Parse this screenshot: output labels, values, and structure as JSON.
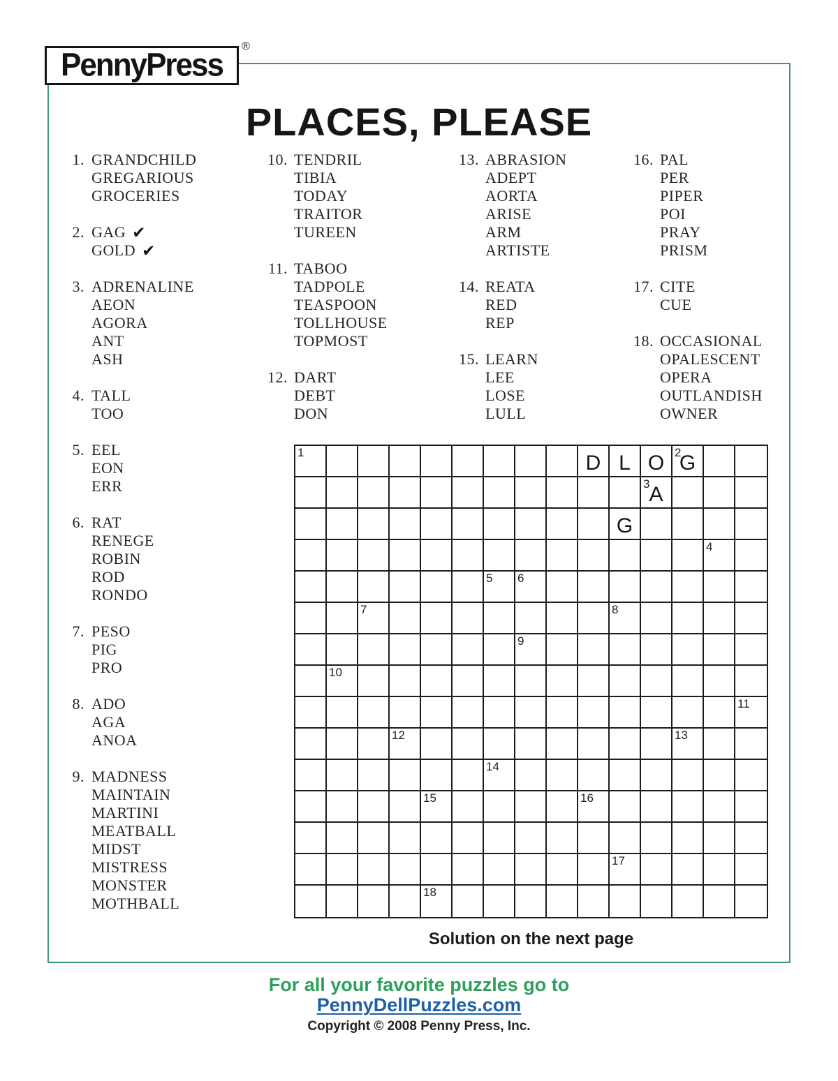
{
  "logo": {
    "text": "PennyPress",
    "registered": "®"
  },
  "title": "PLACES, PLEASE",
  "icons": {
    "check": "✔"
  },
  "word_lists": {
    "columns": [
      [
        {
          "num": "1.",
          "words": [
            {
              "t": "GRANDCHILD"
            },
            {
              "t": "GREGARIOUS"
            },
            {
              "t": "GROCERIES"
            }
          ]
        },
        {
          "num": "2.",
          "words": [
            {
              "t": "GAG",
              "check": true
            },
            {
              "t": "GOLD",
              "check": true
            }
          ]
        },
        {
          "num": "3.",
          "words": [
            {
              "t": "ADRENALINE"
            },
            {
              "t": "AEON"
            },
            {
              "t": "AGORA"
            },
            {
              "t": "ANT"
            },
            {
              "t": "ASH"
            }
          ]
        },
        {
          "num": "4.",
          "words": [
            {
              "t": "TALL"
            },
            {
              "t": "TOO"
            }
          ]
        },
        {
          "num": "5.",
          "words": [
            {
              "t": "EEL"
            },
            {
              "t": "EON"
            },
            {
              "t": "ERR"
            }
          ]
        },
        {
          "num": "6.",
          "words": [
            {
              "t": "RAT"
            },
            {
              "t": "RENEGE"
            },
            {
              "t": "ROBIN"
            },
            {
              "t": "ROD"
            },
            {
              "t": "RONDO"
            }
          ]
        },
        {
          "num": "7.",
          "words": [
            {
              "t": "PESO"
            },
            {
              "t": "PIG"
            },
            {
              "t": "PRO"
            }
          ]
        },
        {
          "num": "8.",
          "words": [
            {
              "t": "ADO"
            },
            {
              "t": "AGA"
            },
            {
              "t": "ANOA"
            }
          ]
        },
        {
          "num": "9.",
          "words": [
            {
              "t": "MADNESS"
            },
            {
              "t": "MAINTAIN"
            },
            {
              "t": "MARTINI"
            },
            {
              "t": "MEATBALL"
            },
            {
              "t": "MIDST"
            },
            {
              "t": "MISTRESS"
            },
            {
              "t": "MONSTER"
            },
            {
              "t": "MOTHBALL"
            }
          ]
        }
      ],
      [
        {
          "num": "10.",
          "words": [
            {
              "t": "TENDRIL"
            },
            {
              "t": "TIBIA"
            },
            {
              "t": "TODAY"
            },
            {
              "t": "TRAITOR"
            },
            {
              "t": "TUREEN"
            }
          ]
        },
        {
          "num": "11.",
          "words": [
            {
              "t": "TABOO"
            },
            {
              "t": "TADPOLE"
            },
            {
              "t": "TEASPOON"
            },
            {
              "t": "TOLLHOUSE"
            },
            {
              "t": "TOPMOST"
            }
          ]
        },
        {
          "num": "12.",
          "words": [
            {
              "t": "DART"
            },
            {
              "t": "DEBT"
            },
            {
              "t": "DON"
            }
          ]
        }
      ],
      [
        {
          "num": "13.",
          "words": [
            {
              "t": "ABRASION"
            },
            {
              "t": "ADEPT"
            },
            {
              "t": "AORTA"
            },
            {
              "t": "ARISE"
            },
            {
              "t": "ARM"
            },
            {
              "t": "ARTISTE"
            }
          ]
        },
        {
          "num": "14.",
          "words": [
            {
              "t": "REATA"
            },
            {
              "t": "RED"
            },
            {
              "t": "REP"
            }
          ]
        },
        {
          "num": "15.",
          "words": [
            {
              "t": "LEARN"
            },
            {
              "t": "LEE"
            },
            {
              "t": "LOSE"
            },
            {
              "t": "LULL"
            }
          ]
        }
      ],
      [
        {
          "num": "16.",
          "words": [
            {
              "t": "PAL"
            },
            {
              "t": "PER"
            },
            {
              "t": "PIPER"
            },
            {
              "t": "POI"
            },
            {
              "t": "PRAY"
            },
            {
              "t": "PRISM"
            }
          ]
        },
        {
          "num": "17.",
          "words": [
            {
              "t": "CITE"
            },
            {
              "t": "CUE"
            }
          ]
        },
        {
          "num": "18.",
          "words": [
            {
              "t": "OCCASIONAL"
            },
            {
              "t": "OPALESCENT"
            },
            {
              "t": "OPERA"
            },
            {
              "t": "OUTLANDISH"
            },
            {
              "t": "OWNER"
            }
          ]
        }
      ]
    ]
  },
  "grid": {
    "rows": 15,
    "cols": 15,
    "prefills": [
      {
        "r": 1,
        "c": 1,
        "n": "1"
      },
      {
        "r": 1,
        "c": 10,
        "l": "D"
      },
      {
        "r": 1,
        "c": 11,
        "l": "L"
      },
      {
        "r": 1,
        "c": 12,
        "l": "O"
      },
      {
        "r": 1,
        "c": 13,
        "l": "G",
        "n": "2"
      },
      {
        "r": 2,
        "c": 12,
        "l": "A",
        "n": "3"
      },
      {
        "r": 3,
        "c": 11,
        "l": "G"
      },
      {
        "r": 4,
        "c": 14,
        "n": "4"
      },
      {
        "r": 5,
        "c": 7,
        "n": "5"
      },
      {
        "r": 5,
        "c": 8,
        "n": "6"
      },
      {
        "r": 6,
        "c": 3,
        "n": "7"
      },
      {
        "r": 6,
        "c": 11,
        "n": "8"
      },
      {
        "r": 7,
        "c": 8,
        "n": "9"
      },
      {
        "r": 8,
        "c": 2,
        "n": "10"
      },
      {
        "r": 9,
        "c": 15,
        "n": "11"
      },
      {
        "r": 10,
        "c": 4,
        "n": "12"
      },
      {
        "r": 10,
        "c": 13,
        "n": "13"
      },
      {
        "r": 11,
        "c": 7,
        "n": "14"
      },
      {
        "r": 12,
        "c": 5,
        "n": "15"
      },
      {
        "r": 12,
        "c": 10,
        "n": "16"
      },
      {
        "r": 14,
        "c": 11,
        "n": "17"
      },
      {
        "r": 15,
        "c": 5,
        "n": "18"
      }
    ]
  },
  "solution_note": "Solution on the next page",
  "footer": {
    "line1": "For all your favorite puzzles go to",
    "link": "PennyDellPuzzles.com",
    "copyright": "Copyright © 2008 Penny Press, Inc."
  },
  "colors": {
    "border_green": "#3c9b73",
    "text_green": "#2da05c",
    "link_blue": "#1e5fa8"
  }
}
